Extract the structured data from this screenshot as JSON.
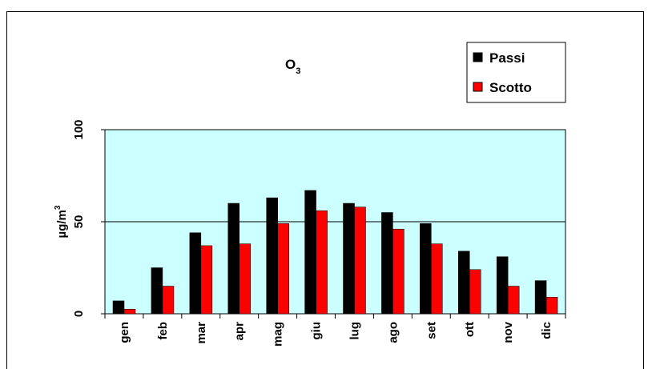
{
  "chart_data": {
    "type": "bar",
    "title_main": "O",
    "title_sub": "3",
    "ylabel_main": "µg/m",
    "ylabel_sup": "3",
    "xlabel": "",
    "ylim": [
      0,
      100
    ],
    "yticks": [
      0,
      50,
      100
    ],
    "grid": "horizontal at 50",
    "legend_position": "top-right",
    "plot_background": "#ccffff",
    "categories": [
      "gen",
      "feb",
      "mar",
      "apr",
      "mag",
      "giu",
      "lug",
      "ago",
      "set",
      "ott",
      "nov",
      "dic"
    ],
    "series": [
      {
        "name": "Passi",
        "color": "#000000",
        "values": [
          7,
          25,
          44,
          60,
          63,
          67,
          60,
          55,
          49,
          34,
          31,
          18
        ]
      },
      {
        "name": "Scotto",
        "color": "#ff0000",
        "values": [
          2.5,
          15,
          37,
          38,
          49,
          56,
          58,
          46,
          38,
          24,
          15,
          9
        ]
      }
    ]
  }
}
